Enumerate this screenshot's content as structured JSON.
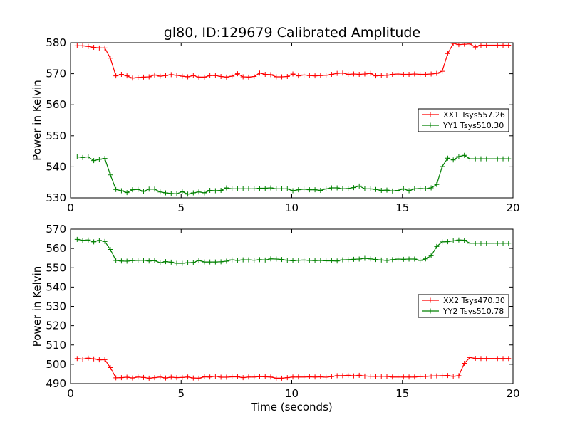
{
  "figure": {
    "title": "gl80, ID:129679 Calibrated Amplitude"
  },
  "chart_data": [
    {
      "type": "line",
      "xlabel": "",
      "ylabel": "Power in Kelvin",
      "xlim": [
        0,
        20
      ],
      "ylim": [
        530,
        580
      ],
      "xticks": [
        "0",
        "5",
        "10",
        "15",
        "20"
      ],
      "yticks": [
        "530",
        "540",
        "550",
        "560",
        "570",
        "580"
      ],
      "legend": "center-right",
      "grid": false,
      "x": [
        0.3,
        0.55,
        0.8,
        1.05,
        1.3,
        1.55,
        1.8,
        2.05,
        2.3,
        2.55,
        2.8,
        3.05,
        3.3,
        3.55,
        3.8,
        4.05,
        4.3,
        4.55,
        4.8,
        5.05,
        5.3,
        5.55,
        5.8,
        6.05,
        6.3,
        6.55,
        6.8,
        7.05,
        7.3,
        7.55,
        7.8,
        8.05,
        8.3,
        8.55,
        8.8,
        9.05,
        9.3,
        9.55,
        9.8,
        10.05,
        10.3,
        10.55,
        10.8,
        11.05,
        11.3,
        11.55,
        11.8,
        12.05,
        12.3,
        12.55,
        12.8,
        13.05,
        13.3,
        13.55,
        13.8,
        14.05,
        14.3,
        14.55,
        14.8,
        15.05,
        15.3,
        15.55,
        15.8,
        16.05,
        16.3,
        16.55,
        16.8,
        17.05,
        17.3,
        17.55,
        17.8,
        18.05,
        18.3,
        18.55,
        18.8,
        19.05,
        19.3,
        19.55,
        19.8
      ],
      "series": [
        {
          "name": "XX1 Tsys557.26",
          "color": "#ff0000",
          "values": [
            579.0,
            579.0,
            578.8,
            578.5,
            578.3,
            578.3,
            575.0,
            569.3,
            569.8,
            569.3,
            568.6,
            568.8,
            568.9,
            569.0,
            569.6,
            569.2,
            569.4,
            569.7,
            569.5,
            569.2,
            569.0,
            569.4,
            568.9,
            568.9,
            569.4,
            569.4,
            569.1,
            568.9,
            569.2,
            570.0,
            569.0,
            568.9,
            569.1,
            570.2,
            569.8,
            569.7,
            569.0,
            569.0,
            569.1,
            569.9,
            569.3,
            569.6,
            569.4,
            569.3,
            569.4,
            569.5,
            569.8,
            570.1,
            570.2,
            569.8,
            569.9,
            569.8,
            569.9,
            570.1,
            569.3,
            569.4,
            569.5,
            569.8,
            569.9,
            569.8,
            569.8,
            569.9,
            569.8,
            569.8,
            569.9,
            570.1,
            570.8,
            576.5,
            579.8,
            579.4,
            579.5,
            579.6,
            578.6,
            579.2,
            579.2,
            579.2,
            579.2,
            579.2,
            579.2
          ]
        },
        {
          "name": "YY1 Tsys510.30",
          "color": "#008000",
          "values": [
            543.2,
            543.0,
            543.2,
            542.0,
            542.4,
            542.7,
            537.4,
            532.7,
            532.3,
            531.7,
            532.6,
            532.7,
            532.1,
            532.8,
            532.8,
            531.9,
            531.6,
            531.4,
            531.3,
            532.0,
            531.2,
            531.6,
            531.9,
            531.6,
            532.4,
            532.3,
            532.4,
            533.2,
            532.9,
            532.9,
            532.9,
            532.9,
            532.9,
            533.1,
            533.1,
            533.2,
            532.9,
            532.9,
            532.9,
            532.3,
            532.6,
            532.8,
            532.6,
            532.6,
            532.4,
            532.9,
            533.2,
            533.2,
            532.9,
            533.0,
            533.3,
            533.8,
            532.9,
            532.9,
            532.7,
            532.4,
            532.5,
            532.2,
            532.4,
            532.9,
            532.3,
            532.9,
            533.0,
            532.9,
            533.2,
            534.3,
            540.1,
            542.8,
            542.2,
            543.3,
            543.7,
            542.6,
            542.6,
            542.6,
            542.6,
            542.6,
            542.6,
            542.6,
            542.6
          ]
        }
      ]
    },
    {
      "type": "line",
      "xlabel": "Time (seconds)",
      "ylabel": "Power in Kelvin",
      "xlim": [
        0,
        20
      ],
      "ylim": [
        490,
        570
      ],
      "xticks": [
        "0",
        "5",
        "10",
        "15",
        "20"
      ],
      "yticks": [
        "490",
        "500",
        "510",
        "520",
        "530",
        "540",
        "550",
        "560",
        "570"
      ],
      "legend": "center-right",
      "grid": false,
      "x": [
        0.3,
        0.55,
        0.8,
        1.05,
        1.3,
        1.55,
        1.8,
        2.05,
        2.3,
        2.55,
        2.8,
        3.05,
        3.3,
        3.55,
        3.8,
        4.05,
        4.3,
        4.55,
        4.8,
        5.05,
        5.3,
        5.55,
        5.8,
        6.05,
        6.3,
        6.55,
        6.8,
        7.05,
        7.3,
        7.55,
        7.8,
        8.05,
        8.3,
        8.55,
        8.8,
        9.05,
        9.3,
        9.55,
        9.8,
        10.05,
        10.3,
        10.55,
        10.8,
        11.05,
        11.3,
        11.55,
        11.8,
        12.05,
        12.3,
        12.55,
        12.8,
        13.05,
        13.3,
        13.55,
        13.8,
        14.05,
        14.3,
        14.55,
        14.8,
        15.05,
        15.3,
        15.55,
        15.8,
        16.05,
        16.3,
        16.55,
        16.8,
        17.05,
        17.3,
        17.55,
        17.8,
        18.05,
        18.3,
        18.55,
        18.8,
        19.05,
        19.3,
        19.55,
        19.8
      ],
      "series": [
        {
          "name": "XX2 Tsys470.30",
          "color": "#ff0000",
          "values": [
            503.0,
            502.7,
            503.2,
            502.8,
            502.3,
            502.4,
            498.3,
            493.0,
            493.1,
            493.3,
            492.9,
            493.4,
            493.2,
            492.8,
            493.1,
            493.4,
            492.9,
            493.3,
            493.1,
            493.2,
            493.4,
            492.9,
            492.8,
            493.5,
            493.4,
            493.8,
            493.3,
            493.3,
            493.5,
            493.5,
            493.1,
            493.4,
            493.4,
            493.6,
            493.5,
            493.4,
            492.8,
            492.8,
            493.1,
            493.4,
            493.4,
            493.4,
            493.5,
            493.4,
            493.5,
            493.3,
            493.6,
            494.1,
            494.1,
            494.3,
            494.0,
            494.3,
            493.9,
            493.8,
            493.7,
            493.8,
            493.7,
            493.4,
            493.4,
            493.4,
            493.4,
            493.4,
            493.6,
            493.7,
            493.9,
            494.0,
            494.1,
            494.2,
            493.8,
            494.1,
            500.5,
            503.5,
            503.1,
            503.0,
            503.0,
            503.0,
            503.0,
            503.0,
            503.0
          ]
        },
        {
          "name": "YY2 Tsys510.78",
          "color": "#008000",
          "values": [
            564.7,
            564.2,
            564.4,
            563.4,
            564.2,
            563.6,
            559.5,
            553.8,
            553.5,
            553.4,
            553.7,
            553.8,
            553.9,
            553.5,
            553.7,
            552.6,
            553.2,
            552.9,
            552.3,
            552.3,
            552.6,
            552.7,
            553.8,
            553.0,
            553.0,
            553.0,
            553.1,
            553.4,
            554.1,
            553.8,
            554.1,
            554.1,
            553.9,
            554.2,
            554.0,
            554.6,
            554.5,
            554.3,
            553.9,
            553.6,
            553.9,
            554.0,
            553.8,
            553.7,
            553.8,
            553.6,
            553.6,
            553.5,
            554.1,
            554.2,
            554.4,
            554.5,
            554.9,
            554.6,
            554.3,
            554.0,
            553.8,
            554.2,
            554.5,
            554.4,
            554.5,
            554.5,
            553.8,
            554.6,
            556.2,
            561.0,
            563.4,
            563.5,
            563.9,
            564.4,
            564.3,
            562.7,
            562.7,
            562.7,
            562.7,
            562.7,
            562.7,
            562.7,
            562.7
          ]
        }
      ]
    }
  ]
}
